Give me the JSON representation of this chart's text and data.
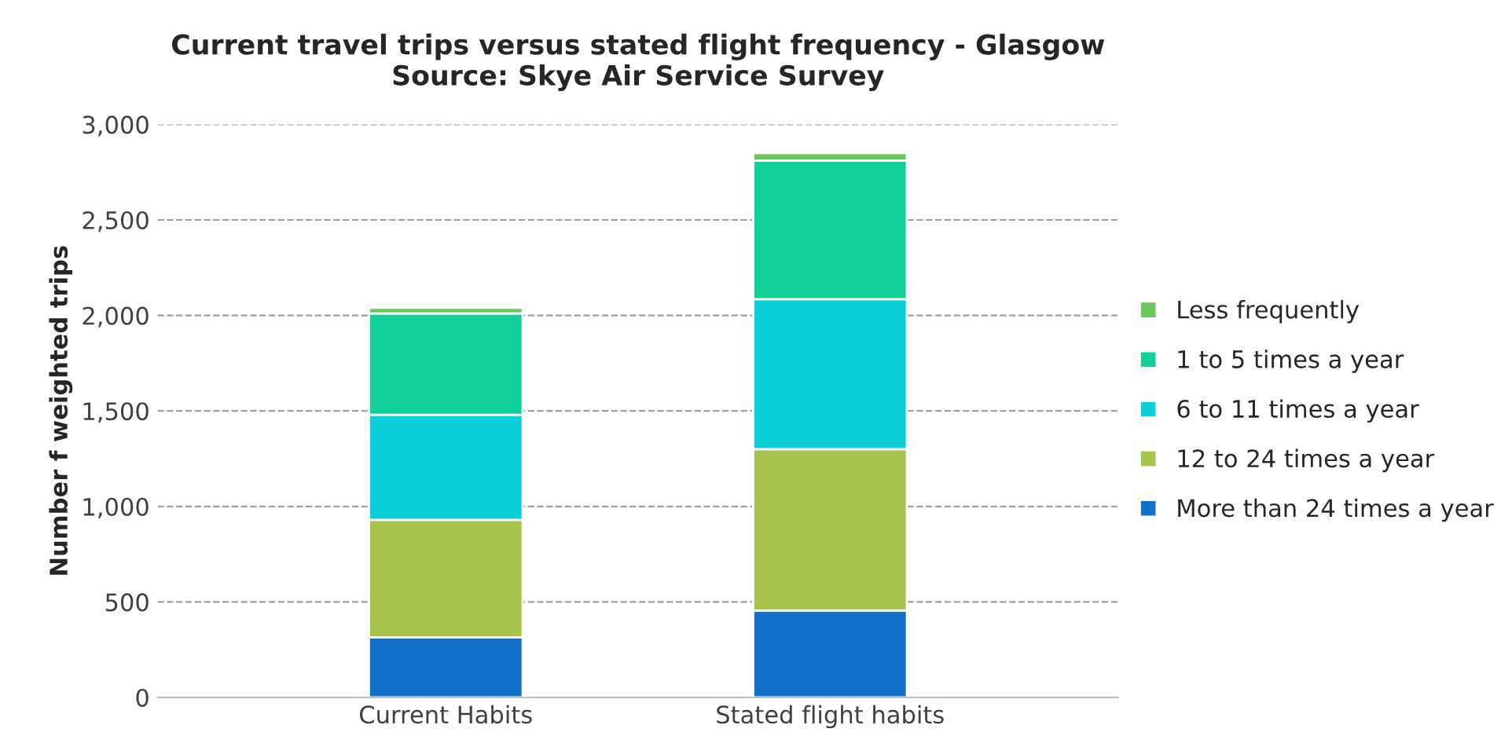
{
  "chart_data": {
    "type": "bar",
    "title": "Current travel trips versus stated flight frequency - Glasgow\nSource: Skye Air Service Survey",
    "ylabel": "Number f weighted trips",
    "categories": [
      "Current Habits",
      "Stated flight habits"
    ],
    "stacked": true,
    "series": [
      {
        "name": "More than 24 times a year",
        "color": "#1170c8",
        "values": [
          315,
          455
        ]
      },
      {
        "name": "12 to 24 times a year",
        "color": "#a6c34c",
        "values": [
          615,
          845
        ]
      },
      {
        "name": "6 to 11 times a year",
        "color": "#0ccfd9",
        "values": [
          550,
          785
        ]
      },
      {
        "name": "1 to 5 times a year",
        "color": "#13cf98",
        "values": [
          530,
          725
        ]
      },
      {
        "name": "Less frequently",
        "color": "#6cc85c",
        "values": [
          30,
          40
        ]
      }
    ],
    "ylim": [
      0,
      3000
    ],
    "yticks": [
      0,
      500,
      {
        "value": 1000,
        "label": "1,000"
      },
      {
        "value": 1500,
        "label": "1,500"
      },
      {
        "value": 2000,
        "label": "2,000"
      },
      {
        "value": 2500,
        "label": "2,500"
      },
      {
        "value": 3000,
        "label": "3,000"
      }
    ],
    "grid": "y",
    "legend": "right"
  }
}
